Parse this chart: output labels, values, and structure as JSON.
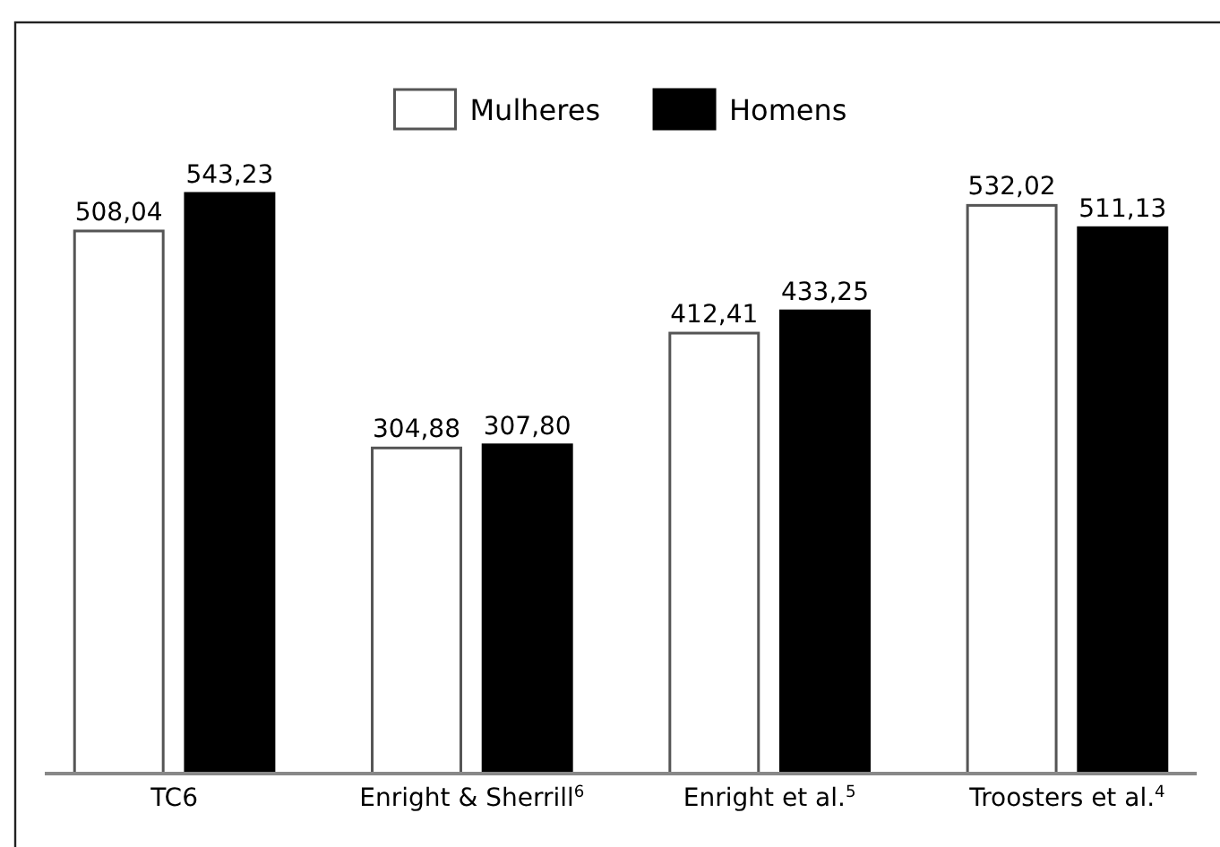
{
  "chart_data": {
    "type": "bar",
    "categories": [
      "TC6",
      "Enright & Sherrill$^{6}$",
      "Enright et al.$^{5}$",
      "Troosters et al.$^{4}$"
    ],
    "series": [
      {
        "name": "Mulheres",
        "color": "#ffffff",
        "values": [
          508.04,
          304.88,
          412.41,
          532.02
        ],
        "value_labels": [
          "508,04",
          "304,88",
          "412,41",
          "532,02"
        ]
      },
      {
        "name": "Homens",
        "color": "#000000",
        "values": [
          543.23,
          307.8,
          433.25,
          511.13
        ],
        "value_labels": [
          "543,23",
          "307,80",
          "433,25",
          "511,13"
        ]
      }
    ],
    "legend": "top",
    "tick_labels": "x",
    "grid": false
  }
}
